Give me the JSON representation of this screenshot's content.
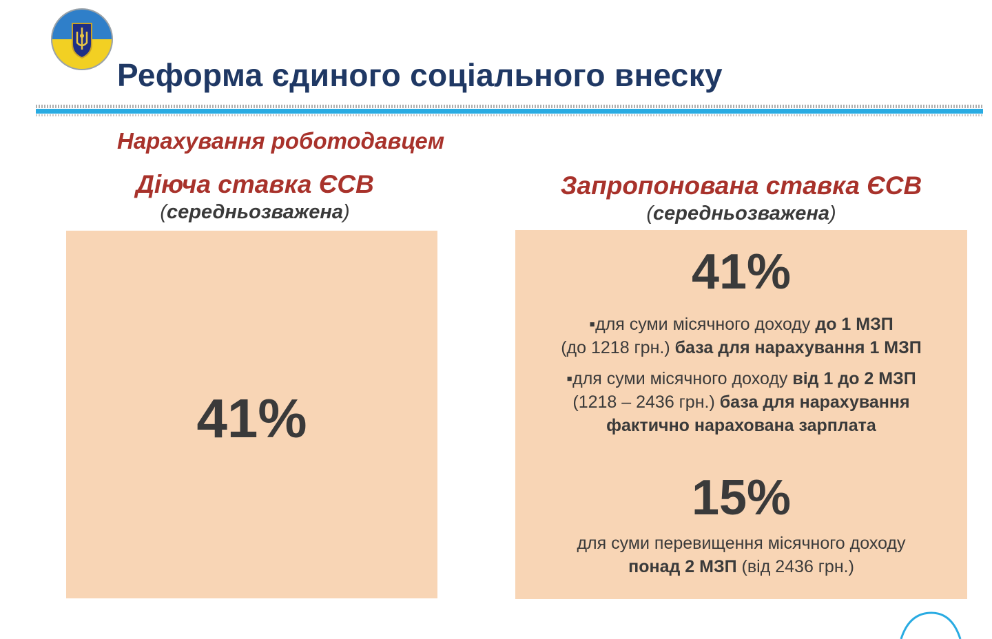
{
  "header": {
    "title": "Реформа єдиного соціального внеску",
    "logo_icon": "ukraine-coat-of-arms-emblem"
  },
  "subtitle": "Нарахування роботодавцем",
  "left": {
    "heading": "Діюча ставка ЄСВ",
    "note_open": "(",
    "note": "середньозважена",
    "note_close": ")",
    "rate": "41%"
  },
  "right": {
    "heading": "Запропонована ставка ЄСВ",
    "note_open": "(",
    "note": "середньозважена",
    "note_close": ")",
    "rate1": "41%",
    "b1_pre": "▪для суми місячного доходу ",
    "b1_bold1": "до 1 МЗП",
    "b1_mid": "(до 1218 грн.) ",
    "b1_bold2": "база для нарахування 1 МЗП",
    "b2_pre": "▪для суми місячного доходу ",
    "b2_bold1": "від 1 до 2 МЗП",
    "b2_mid": "(1218 – 2436 грн.) ",
    "b2_bold2": "база для нарахування",
    "b2_bold3": "фактично нарахована зарплата",
    "rate2": "15%",
    "b3_line1": "для суми перевищення місячного доходу",
    "b3_bold": "понад 2 МЗП",
    "b3_rest": " (від 2436 грн.)"
  },
  "colors": {
    "title": "#1f3864",
    "accent_red": "#a8322b",
    "box_fill": "#f8d5b5",
    "rule": "#29abe2",
    "text": "#3a3a3a"
  }
}
